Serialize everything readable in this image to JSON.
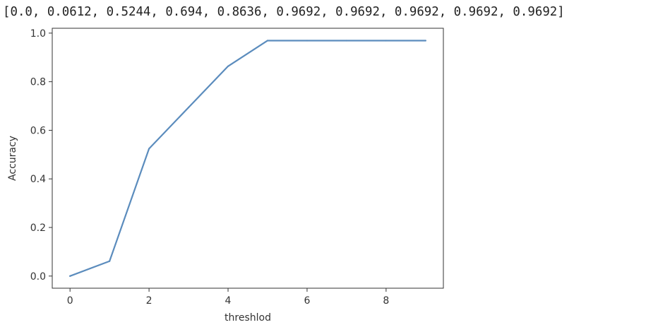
{
  "printed_output": "[0.0, 0.0612, 0.5244, 0.694, 0.8636, 0.9692, 0.9692, 0.9692, 0.9692, 0.9692]",
  "chart_data": {
    "type": "line",
    "x": [
      0,
      1,
      2,
      3,
      4,
      5,
      6,
      7,
      8,
      9
    ],
    "series": [
      {
        "values": [
          0.0,
          0.0612,
          0.5244,
          0.694,
          0.8636,
          0.9692,
          0.9692,
          0.9692,
          0.9692,
          0.9692
        ],
        "color": "#5b8cbd"
      }
    ],
    "xlabel": "threshlod",
    "ylabel": "Accuracy",
    "xlim": [
      -0.45,
      9.45
    ],
    "ylim": [
      -0.05,
      1.02
    ],
    "xticks": [
      0,
      2,
      4,
      6,
      8
    ],
    "yticks": [
      0.0,
      0.2,
      0.4,
      0.6,
      0.8,
      1.0
    ],
    "xtick_labels": [
      "0",
      "2",
      "4",
      "6",
      "8"
    ],
    "ytick_labels": [
      "0.0",
      "0.2",
      "0.4",
      "0.6",
      "0.8",
      "1.0"
    ],
    "grid": false,
    "legend": false
  }
}
